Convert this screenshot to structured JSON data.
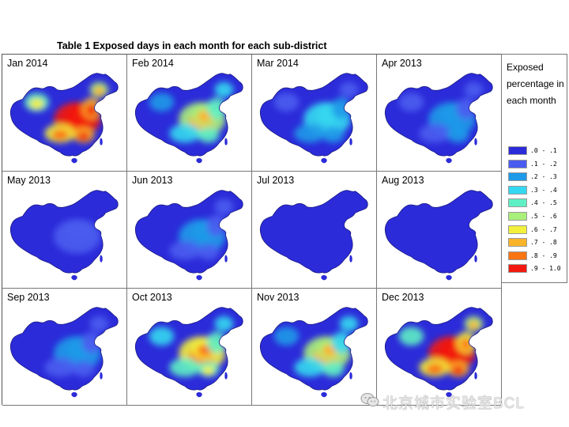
{
  "header": {
    "title": "Table 1 Exposed days in each month for each sub-district"
  },
  "chart_data": {
    "type": "heatmap",
    "title": "Table 1 Exposed days in each month for each sub-district",
    "legend": {
      "title": "Exposed percentage in each month",
      "placement": "right",
      "bins": [
        ".0 - .1",
        ".1 - .2",
        ".2 - .3",
        ".3 - .4",
        ".4 - .5",
        ".5 - .6",
        ".6 - .7",
        ".7 - .8",
        ".8 - .9",
        ".9 - 1.0"
      ],
      "colors": [
        "#2b2bd9",
        "#4a5cf0",
        "#1f9ae8",
        "#35d8f0",
        "#5ef0c4",
        "#a8f07a",
        "#f2f03a",
        "#fbb428",
        "#fb7412",
        "#f21a10"
      ]
    },
    "panels": [
      {
        "month": "Jan 2014",
        "intensity": 0.95
      },
      {
        "month": "Feb 2014",
        "intensity": 0.55
      },
      {
        "month": "Mar 2014",
        "intensity": 0.3
      },
      {
        "month": "Apr 2013",
        "intensity": 0.25
      },
      {
        "month": "May 2013",
        "intensity": 0.12
      },
      {
        "month": "Jun 2013",
        "intensity": 0.2
      },
      {
        "month": "Jul 2013",
        "intensity": 0.1
      },
      {
        "month": "Aug 2013",
        "intensity": 0.08
      },
      {
        "month": "Sep 2013",
        "intensity": 0.2
      },
      {
        "month": "Oct 2013",
        "intensity": 0.6
      },
      {
        "month": "Nov 2013",
        "intensity": 0.5
      },
      {
        "month": "Dec 2013",
        "intensity": 0.9
      }
    ]
  },
  "watermark": {
    "text": "北京城市实验室BCL",
    "icon": "wechat-icon"
  }
}
